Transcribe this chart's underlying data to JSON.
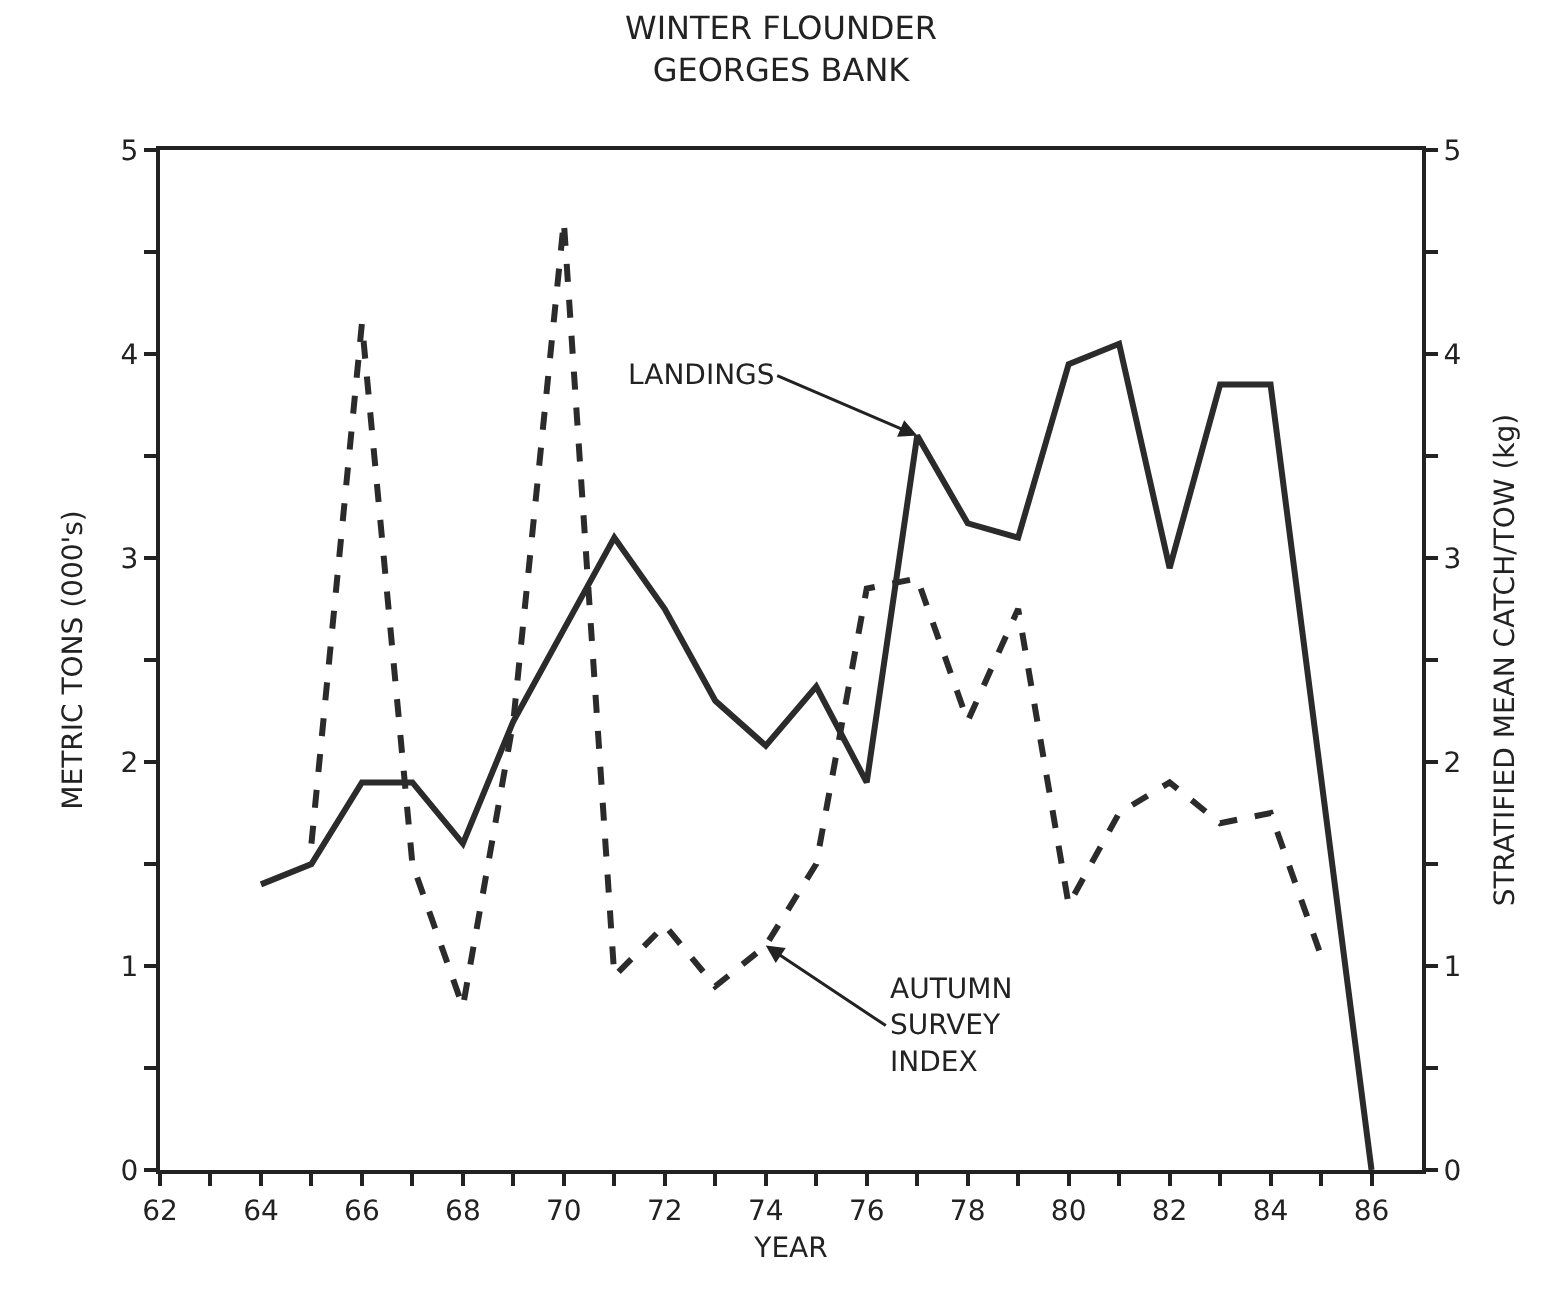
{
  "chart_data": {
    "type": "line",
    "title": "WINTER FLOUNDER\nGEORGES BANK",
    "xlabel": "YEAR",
    "ylabel": "METRIC TONS (000's)",
    "y2label": "STRATIFIED MEAN CATCH/TOW (kg)",
    "series": [
      {
        "color": "#2b2b2b",
        "line_style": "solid",
        "x": [
          64,
          65,
          66,
          67,
          68,
          69,
          70,
          71,
          72,
          73,
          74,
          75,
          76,
          77,
          78,
          79,
          80,
          81,
          82,
          83,
          84,
          86
        ],
        "values": [
          1.4,
          1.5,
          1.9,
          1.9,
          1.6,
          2.2,
          2.65,
          3.1,
          2.75,
          2.3,
          2.08,
          2.37,
          1.9,
          3.6,
          3.17,
          3.1,
          3.95,
          4.05,
          2.95,
          3.85,
          3.85,
          0
        ]
      },
      {
        "color": "#2b2b2b",
        "line_style": "dashed",
        "axis": "y2",
        "x": [
          65,
          66,
          67,
          68,
          69,
          70,
          71,
          72,
          73,
          74,
          75,
          76,
          77,
          78,
          79,
          80,
          81,
          82,
          83,
          84,
          85
        ],
        "values": [
          1.6,
          4.15,
          1.5,
          0.8,
          2.2,
          4.65,
          0.95,
          1.2,
          0.9,
          1.1,
          1.5,
          2.85,
          2.9,
          2.2,
          2.75,
          1.3,
          1.75,
          1.9,
          1.7,
          1.75,
          1.05
        ]
      }
    ],
    "annotations": [
      {
        "text": "LANDINGS",
        "x": 77,
        "y": 3.6
      },
      {
        "text": "AUTUMN\nSURVEY\nINDEX",
        "x": 74,
        "y": 1.1
      }
    ],
    "xlim": [
      62,
      87
    ],
    "xticks": [
      62,
      {
        "value": 63,
        "label": null
      },
      64,
      {
        "value": 65,
        "label": null
      },
      66,
      {
        "value": 67,
        "label": null
      },
      68,
      {
        "value": 69,
        "label": null
      },
      70,
      {
        "value": 71,
        "label": null
      },
      72,
      {
        "value": 73,
        "label": null
      },
      74,
      {
        "value": 75,
        "label": null
      },
      76,
      {
        "value": 77,
        "label": null
      },
      78,
      {
        "value": 79,
        "label": null
      },
      80,
      {
        "value": 81,
        "label": null
      },
      82,
      {
        "value": 83,
        "label": null
      },
      84,
      {
        "value": 85,
        "label": null
      },
      86
    ],
    "ylim": [
      0,
      5
    ],
    "yticks": [
      0,
      {
        "value": 0.5,
        "label": null
      },
      1,
      {
        "value": 1.5,
        "label": null
      },
      2,
      {
        "value": 2.5,
        "label": null
      },
      3,
      {
        "value": 3.5,
        "label": null
      },
      4,
      {
        "value": 4.5,
        "label": null
      },
      5
    ],
    "y2lim": [
      0,
      5
    ],
    "y2ticks": [
      0,
      {
        "value": 0.5,
        "label": null
      },
      1,
      {
        "value": 1.5,
        "label": null
      },
      2,
      {
        "value": 2.5,
        "label": null
      },
      3,
      {
        "value": 3.5,
        "label": null
      },
      4,
      {
        "value": 4.5,
        "label": null
      },
      5
    ],
    "grid": false,
    "marker": "none"
  }
}
